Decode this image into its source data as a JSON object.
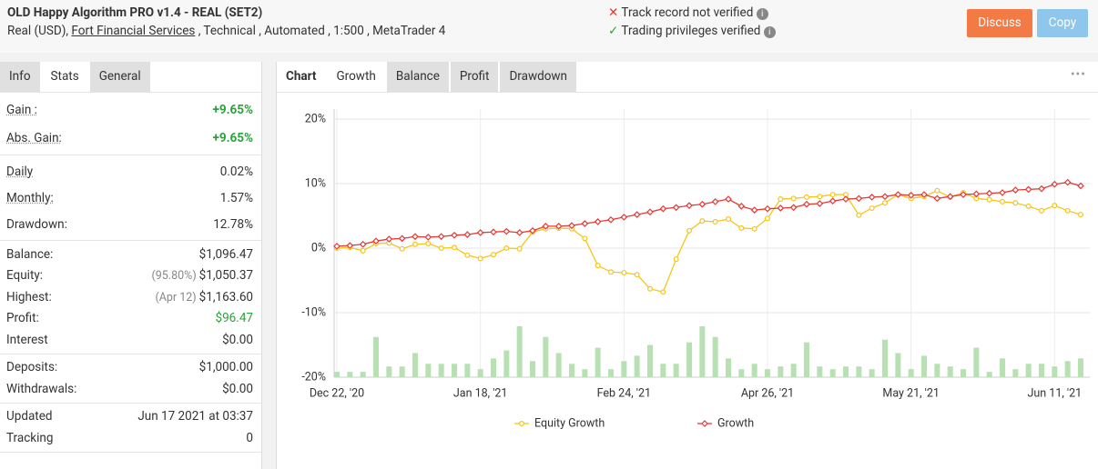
{
  "header": {
    "title": "OLD Happy Algorithm PRO v1.4 - REAL (SET2)",
    "account": "Real (USD),",
    "broker": "Fort Financial Services",
    "details": ", Technical , Automated , 1:500 , MetaTrader 4",
    "status": [
      "Track record not verified",
      "Trading privileges verified"
    ],
    "buttons": [
      "Discuss",
      "Copy"
    ]
  },
  "stats_tabs": {
    "items": [
      "Info",
      "Stats",
      "General"
    ],
    "active": 1
  },
  "stats": [
    [
      {
        "label": "Gain :",
        "value": "+9.65%",
        "color": "#2aa33c",
        "bold": true
      },
      {
        "label": "Abs. Gain:",
        "value": "+9.65%",
        "color": "#2aa33c",
        "bold": true
      }
    ],
    [
      {
        "label": "Daily",
        "value": "0.02%"
      },
      {
        "label": "Monthly:",
        "value": "1.57%"
      },
      {
        "label": "Drawdown:",
        "value": "12.78%"
      }
    ],
    [
      {
        "label": "Balance:",
        "value": "$1,096.47"
      },
      {
        "label": "Equity:",
        "note": "(95.80%)",
        "value": "$1,050.37"
      },
      {
        "label": "Highest:",
        "note": "(Apr 12)",
        "value": "$1,163.60"
      },
      {
        "label": "Profit:",
        "value": "$96.47",
        "color": "#2aa33c"
      },
      {
        "label": "Interest",
        "value": "$0.00"
      }
    ],
    [
      {
        "label": "Deposits:",
        "value": "$1,000.00"
      },
      {
        "label": "Withdrawals:",
        "value": "$0.00"
      }
    ],
    [
      {
        "label": "Updated",
        "value": "Jun 17 2021 at 03:37"
      },
      {
        "label": "Tracking",
        "value": "0"
      }
    ]
  ],
  "chart_tabs": {
    "items": [
      "Chart",
      "Growth",
      "Balance",
      "Profit",
      "Drawdown"
    ],
    "active": 1
  },
  "chart_data": {
    "type": "line",
    "categories": [
      "Dec 22, '20",
      null,
      null,
      null,
      null,
      null,
      null,
      null,
      null,
      null,
      null,
      "Jan 18, '21",
      null,
      null,
      null,
      null,
      null,
      null,
      null,
      null,
      null,
      null,
      "Feb 24, '21",
      null,
      null,
      null,
      null,
      null,
      null,
      null,
      null,
      null,
      null,
      "Apr 26, '21",
      null,
      null,
      null,
      null,
      null,
      null,
      null,
      null,
      null,
      null,
      "May 21, '21",
      null,
      null,
      null,
      null,
      null,
      null,
      null,
      null,
      null,
      null,
      "Jun 11, '21",
      null,
      null
    ],
    "series": [
      {
        "name": "Equity Growth",
        "color": "#f5c518",
        "marker": "circle",
        "values": [
          0.0,
          0.1,
          -0.4,
          0.7,
          0.8,
          -0.1,
          0.6,
          0.7,
          0.0,
          0.1,
          -1.1,
          -1.6,
          -1.0,
          0.0,
          -0.1,
          2.5,
          3.0,
          3.1,
          3.0,
          1.5,
          -2.7,
          -3.7,
          -3.8,
          -4.1,
          -6.3,
          -6.8,
          -1.7,
          2.7,
          4.2,
          4.1,
          4.5,
          3.1,
          3.0,
          4.6,
          7.6,
          7.7,
          7.9,
          8.0,
          8.3,
          8.3,
          5.1,
          6.2,
          7.0,
          8.3,
          7.7,
          8.0,
          8.9,
          7.9,
          8.6,
          7.7,
          7.5,
          7.2,
          7.0,
          6.5,
          5.8,
          6.6,
          5.8,
          5.2
        ]
      },
      {
        "name": "Growth",
        "color": "#e53935",
        "marker": "diamond",
        "values": [
          0.3,
          0.4,
          0.6,
          1.1,
          1.4,
          1.5,
          1.8,
          1.7,
          1.8,
          2.0,
          2.1,
          2.4,
          2.5,
          2.6,
          2.4,
          2.7,
          3.4,
          3.4,
          3.5,
          3.8,
          4.1,
          4.4,
          4.8,
          5.2,
          5.6,
          6.1,
          6.3,
          6.6,
          6.8,
          7.2,
          7.6,
          6.5,
          5.9,
          6.1,
          6.2,
          6.3,
          6.8,
          6.9,
          7.3,
          7.6,
          7.7,
          7.9,
          8.0,
          8.3,
          8.2,
          8.3,
          7.7,
          8.0,
          8.3,
          8.4,
          8.5,
          8.6,
          9.0,
          9.1,
          9.2,
          9.9,
          10.2,
          9.65
        ]
      }
    ],
    "bars": {
      "color": "#b7e0b3",
      "values": [
        2,
        2,
        2,
        15,
        4,
        4,
        9,
        5,
        5,
        5,
        5,
        3,
        7,
        10,
        19,
        6,
        15,
        9,
        5,
        3,
        11,
        3,
        6,
        8,
        12,
        5,
        5,
        13,
        19,
        15,
        7,
        3,
        5,
        3,
        4,
        5,
        13,
        4,
        3,
        4,
        4,
        3,
        14,
        9,
        3,
        8,
        5,
        4,
        3,
        11,
        2,
        7,
        3,
        5,
        5,
        4,
        6,
        7
      ]
    },
    "y2lim": [
      0,
      100
    ],
    "ylim": [
      -20,
      20
    ],
    "yticks": [
      {
        "value": 20,
        "label": "20%"
      },
      {
        "value": 10,
        "label": "10%"
      },
      {
        "value": 0,
        "label": "0%"
      },
      {
        "value": -10,
        "label": "-10%"
      },
      {
        "value": -20,
        "label": "-20%"
      }
    ],
    "grid": true
  }
}
